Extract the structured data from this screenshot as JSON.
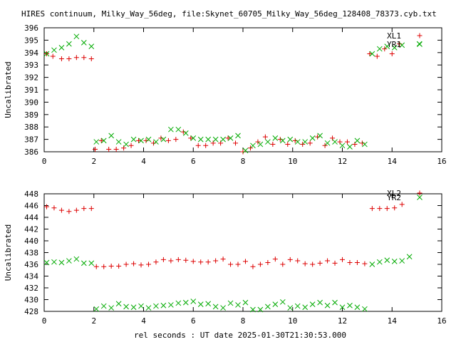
{
  "figure": {
    "title": "HIRES continuum, Milky_Way_56deg, file:Skynet_60705_Milky_Way_56deg_128408_78373.cyb.txt",
    "xlabel": "rel seconds : UT date 2025-01-30T21:30:53.000"
  },
  "colors": {
    "XL": "#dd0000",
    "YR": "#00aa00",
    "axis": "#000000"
  },
  "chart_data": [
    {
      "type": "scatter",
      "title": "",
      "xlabel": "",
      "ylabel": "Uncalibrated",
      "xlim": [
        0,
        16
      ],
      "ylim": [
        386,
        396
      ],
      "xticks": [
        0,
        2,
        4,
        6,
        8,
        10,
        12,
        14,
        16
      ],
      "yticks": [
        386,
        387,
        388,
        389,
        390,
        391,
        392,
        393,
        394,
        395,
        396
      ],
      "legend": "top-right",
      "grid": false,
      "series": [
        {
          "name": "XL1",
          "marker": "plus",
          "color": "#dd0000",
          "x": [
            0.1,
            0.35,
            0.7,
            1.0,
            1.3,
            1.6,
            1.9,
            2.05,
            2.3,
            2.6,
            2.9,
            3.2,
            3.5,
            3.8,
            4.1,
            4.4,
            4.7,
            5.0,
            5.3,
            5.6,
            5.9,
            6.2,
            6.5,
            6.8,
            7.1,
            7.4,
            7.7,
            8.0,
            8.3,
            8.6,
            8.9,
            9.2,
            9.5,
            9.8,
            10.1,
            10.4,
            10.7,
            11.0,
            11.3,
            11.6,
            11.9,
            12.2,
            12.5,
            12.8,
            13.1,
            13.4,
            13.7,
            14.0,
            14.3
          ],
          "y": [
            393.9,
            393.7,
            393.5,
            393.5,
            393.6,
            393.6,
            393.5,
            386.2,
            386.9,
            386.2,
            386.2,
            386.3,
            386.5,
            386.9,
            386.9,
            386.7,
            387.1,
            386.9,
            387.0,
            387.6,
            387.1,
            386.5,
            386.5,
            386.7,
            386.7,
            387.1,
            386.7,
            386.0,
            386.3,
            386.8,
            387.2,
            386.6,
            387.0,
            386.6,
            386.9,
            386.6,
            386.7,
            387.2,
            386.5,
            387.1,
            386.8,
            386.8,
            386.6,
            386.7,
            393.9,
            393.7,
            394.3,
            393.9,
            394.7
          ]
        },
        {
          "name": "YR1",
          "marker": "cross",
          "color": "#00aa00",
          "x": [
            0.1,
            0.4,
            0.7,
            1.0,
            1.3,
            1.6,
            1.9,
            2.1,
            2.4,
            2.7,
            3.0,
            3.3,
            3.6,
            3.9,
            4.2,
            4.5,
            4.8,
            5.1,
            5.4,
            5.7,
            6.0,
            6.3,
            6.6,
            6.9,
            7.2,
            7.5,
            7.8,
            8.1,
            8.4,
            8.7,
            9.0,
            9.3,
            9.6,
            9.9,
            10.2,
            10.5,
            10.8,
            11.1,
            11.4,
            11.7,
            12.0,
            12.3,
            12.6,
            12.9,
            13.2,
            13.5,
            13.8,
            14.1,
            14.4,
            15.1
          ],
          "y": [
            393.9,
            394.2,
            394.4,
            394.7,
            395.3,
            394.8,
            394.5,
            386.8,
            386.9,
            387.3,
            386.8,
            386.6,
            387.0,
            386.9,
            387.0,
            386.8,
            387.0,
            387.8,
            387.8,
            387.5,
            387.1,
            387.0,
            387.0,
            387.0,
            387.0,
            387.1,
            387.3,
            386.1,
            386.5,
            386.6,
            386.8,
            387.1,
            386.9,
            387.0,
            386.8,
            386.8,
            387.1,
            387.3,
            386.7,
            386.8,
            386.5,
            386.4,
            386.9,
            386.6,
            393.9,
            394.3,
            394.5,
            394.4,
            394.6,
            394.7
          ]
        }
      ]
    },
    {
      "type": "scatter",
      "title": "",
      "xlabel": "rel seconds : UT date 2025-01-30T21:30:53.000",
      "ylabel": "Uncalibrated",
      "xlim": [
        0,
        16
      ],
      "ylim": [
        428,
        448
      ],
      "xticks": [
        0,
        2,
        4,
        6,
        8,
        10,
        12,
        14,
        16
      ],
      "yticks": [
        428,
        430,
        432,
        434,
        436,
        438,
        440,
        442,
        444,
        446,
        448
      ],
      "legend": "top-right",
      "grid": false,
      "series": [
        {
          "name": "XL2",
          "marker": "plus",
          "color": "#dd0000",
          "x": [
            0.1,
            0.4,
            0.7,
            1.0,
            1.3,
            1.6,
            1.9,
            2.1,
            2.4,
            2.7,
            3.0,
            3.3,
            3.6,
            3.9,
            4.2,
            4.5,
            4.8,
            5.1,
            5.4,
            5.7,
            6.0,
            6.3,
            6.6,
            6.9,
            7.2,
            7.5,
            7.8,
            8.1,
            8.4,
            8.7,
            9.0,
            9.3,
            9.6,
            9.9,
            10.2,
            10.5,
            10.8,
            11.1,
            11.4,
            11.7,
            12.0,
            12.3,
            12.6,
            12.9,
            13.2,
            13.5,
            13.8,
            14.1,
            14.4
          ],
          "y": [
            445.8,
            445.6,
            445.2,
            445.0,
            445.2,
            445.5,
            445.5,
            435.6,
            435.6,
            435.7,
            435.7,
            436.0,
            436.1,
            435.9,
            436.0,
            436.4,
            436.8,
            436.6,
            436.8,
            436.7,
            436.5,
            436.4,
            436.4,
            436.6,
            436.9,
            436.0,
            436.0,
            436.5,
            435.6,
            436.0,
            436.3,
            436.9,
            436.0,
            436.8,
            436.6,
            436.1,
            436.0,
            436.2,
            436.6,
            436.2,
            436.8,
            436.3,
            436.3,
            436.1,
            445.5,
            445.5,
            445.5,
            445.6,
            446.2
          ]
        },
        {
          "name": "YR2",
          "marker": "cross",
          "color": "#00aa00",
          "x": [
            0.1,
            0.4,
            0.7,
            1.0,
            1.3,
            1.6,
            1.9,
            2.1,
            2.4,
            2.7,
            3.0,
            3.3,
            3.6,
            3.9,
            4.2,
            4.5,
            4.8,
            5.1,
            5.4,
            5.7,
            6.0,
            6.3,
            6.6,
            6.9,
            7.2,
            7.5,
            7.8,
            8.1,
            8.4,
            8.7,
            9.0,
            9.3,
            9.6,
            9.9,
            10.2,
            10.5,
            10.8,
            11.1,
            11.4,
            11.7,
            12.0,
            12.3,
            12.6,
            12.9,
            13.2,
            13.5,
            13.8,
            14.1,
            14.4,
            14.7
          ],
          "y": [
            436.3,
            436.4,
            436.3,
            436.6,
            436.9,
            436.2,
            436.2,
            428.4,
            428.9,
            428.6,
            429.3,
            428.8,
            428.7,
            428.9,
            428.6,
            428.9,
            429.0,
            429.1,
            429.4,
            429.5,
            429.7,
            429.2,
            429.3,
            428.8,
            428.6,
            429.4,
            429.1,
            429.5,
            428.3,
            428.3,
            428.8,
            429.2,
            429.6,
            428.6,
            428.9,
            428.7,
            429.2,
            429.5,
            429.0,
            429.5,
            428.7,
            429.0,
            428.7,
            428.4,
            436.0,
            436.4,
            436.7,
            436.5,
            436.6,
            437.3
          ]
        }
      ]
    }
  ]
}
